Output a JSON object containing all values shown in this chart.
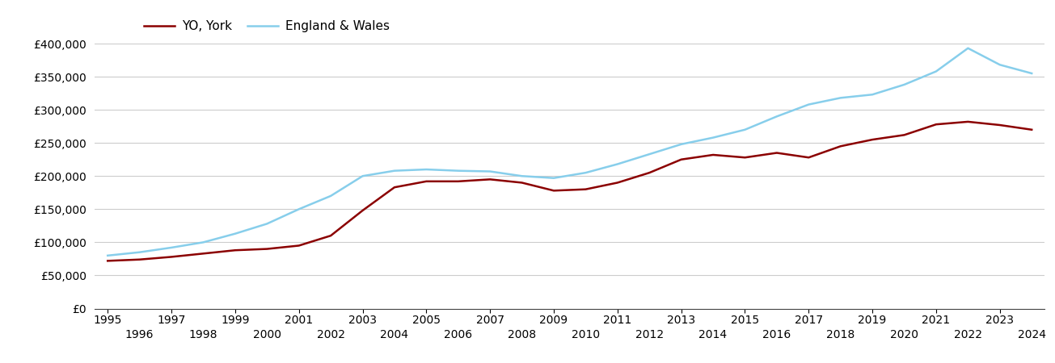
{
  "york_color": "#8B0000",
  "ew_color": "#87CEEB",
  "line_width": 1.8,
  "background_color": "#ffffff",
  "grid_color": "#cccccc",
  "legend_labels": [
    "YO, York",
    "England & Wales"
  ],
  "years": [
    1995,
    1996,
    1997,
    1998,
    1999,
    2000,
    2001,
    2002,
    2003,
    2004,
    2005,
    2006,
    2007,
    2008,
    2009,
    2010,
    2011,
    2012,
    2013,
    2014,
    2015,
    2016,
    2017,
    2018,
    2019,
    2020,
    2021,
    2022,
    2023,
    2024
  ],
  "york_values": [
    72000,
    74000,
    78000,
    83000,
    88000,
    90000,
    95000,
    110000,
    148000,
    183000,
    192000,
    192000,
    195000,
    190000,
    178000,
    180000,
    190000,
    205000,
    225000,
    232000,
    228000,
    235000,
    228000,
    245000,
    255000,
    262000,
    278000,
    282000,
    277000,
    270000
  ],
  "ew_values": [
    80000,
    85000,
    92000,
    100000,
    113000,
    128000,
    150000,
    170000,
    200000,
    208000,
    210000,
    208000,
    207000,
    200000,
    197000,
    205000,
    218000,
    233000,
    248000,
    258000,
    270000,
    290000,
    308000,
    318000,
    323000,
    338000,
    358000,
    393000,
    368000,
    355000
  ],
  "ylim": [
    0,
    400000
  ],
  "ytick_values": [
    0,
    50000,
    100000,
    150000,
    200000,
    250000,
    300000,
    350000,
    400000
  ],
  "xlim_start": 1994.6,
  "xlim_end": 2024.4,
  "odd_years": [
    1995,
    1997,
    1999,
    2001,
    2003,
    2005,
    2007,
    2009,
    2011,
    2013,
    2015,
    2017,
    2019,
    2021,
    2023
  ],
  "even_years": [
    1996,
    1998,
    2000,
    2002,
    2004,
    2006,
    2008,
    2010,
    2012,
    2014,
    2016,
    2018,
    2020,
    2022,
    2024
  ]
}
